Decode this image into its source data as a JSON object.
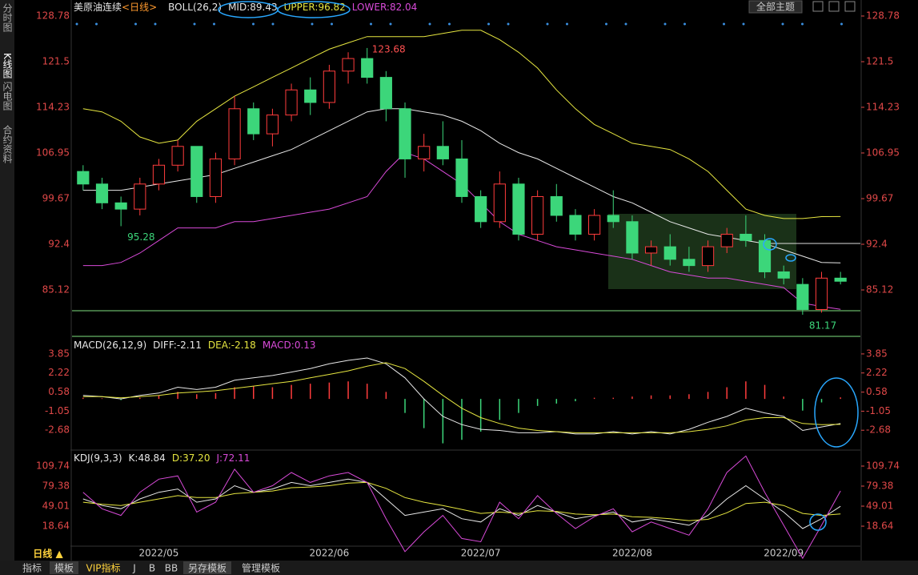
{
  "window": {
    "sidebar": [
      "分时图",
      "K线图",
      "闪电图",
      "合约资料"
    ],
    "theme_button": "全部主题",
    "period_switch": "日线 ▲",
    "tabs": [
      "指标",
      "模板",
      "VIP指标",
      "J",
      "B",
      "BB",
      "另存模板",
      "管理模板"
    ]
  },
  "chart_data": [
    {
      "type": "candlestick",
      "title": "美原油连续",
      "period": "<日线>",
      "indicator": "BOLL(26,2)",
      "readouts": [
        "MID:89.43",
        "UPPER:96.82",
        "LOWER:82.04"
      ],
      "readout_colors": [
        "#e8e8e8",
        "#e6e640",
        "#d84ad8"
      ],
      "categories": [
        null,
        null,
        null,
        null,
        "2022/05",
        null,
        null,
        null,
        null,
        null,
        null,
        null,
        null,
        "2022/06",
        null,
        null,
        null,
        null,
        null,
        null,
        null,
        "2022/07",
        null,
        null,
        null,
        null,
        null,
        null,
        null,
        "2022/08",
        null,
        null,
        null,
        null,
        null,
        null,
        null,
        "2022/09",
        null,
        null,
        null
      ],
      "open": [
        104,
        102,
        99,
        98,
        102,
        105,
        108,
        100,
        106,
        114,
        110,
        113,
        117,
        115,
        120,
        122,
        119,
        114,
        106,
        108,
        106,
        100,
        96,
        102,
        94,
        100,
        97,
        94,
        97,
        96,
        91,
        92,
        90,
        89,
        92,
        94,
        93,
        88,
        86,
        82,
        87
      ],
      "high": [
        105,
        103,
        100,
        103,
        106,
        109,
        108,
        107,
        116,
        115,
        114,
        118,
        119,
        121,
        123,
        123.68,
        120,
        115,
        110,
        112,
        109,
        101,
        104,
        103,
        101,
        102,
        98,
        98,
        101,
        97,
        93,
        94,
        92,
        93,
        95,
        97,
        94,
        89,
        87,
        88,
        88
      ],
      "low": [
        101,
        98,
        95.28,
        97,
        101,
        104,
        99,
        99,
        105,
        109,
        108,
        112,
        113,
        114,
        118,
        118,
        112,
        103,
        104,
        105,
        99,
        95,
        95,
        93,
        93,
        96,
        93,
        93,
        95,
        90,
        89,
        89,
        88,
        88,
        91,
        92,
        87,
        86,
        81.17,
        81.5,
        86
      ],
      "close": [
        102,
        99,
        98,
        102,
        105,
        108,
        100,
        106,
        114,
        110,
        113,
        117,
        115,
        120,
        122,
        119,
        114,
        106,
        108,
        106,
        100,
        96,
        102,
        94,
        100,
        97,
        94,
        97,
        96,
        91,
        92,
        90,
        89,
        92,
        94,
        93,
        88,
        87,
        82,
        87,
        86.5
      ],
      "up_color": "#ff3c3c",
      "down_color": "#3cd67a",
      "series": [
        {
          "color": "#e8e8e8",
          "values": [
            101,
            101,
            101,
            101.5,
            102,
            102.5,
            103,
            103.5,
            104.5,
            105.5,
            106.5,
            107.5,
            109,
            110.5,
            112,
            113.5,
            114,
            114,
            113.5,
            113,
            112,
            110.5,
            108.5,
            107,
            106,
            104.5,
            103,
            101.5,
            100,
            99,
            97.5,
            96,
            95,
            94,
            93.5,
            93,
            92.5,
            91.5,
            90.5,
            89.5,
            89.43
          ]
        },
        {
          "color": "#e6e640",
          "values": [
            114,
            113.5,
            112,
            109.5,
            108.5,
            109,
            112,
            114,
            116,
            117.5,
            119,
            120.5,
            122,
            123.5,
            124.5,
            125.5,
            125.5,
            125.5,
            125.5,
            126,
            126.5,
            126.5,
            125,
            123,
            120.5,
            117,
            114,
            111.5,
            110,
            108.5,
            108,
            107.5,
            106,
            104,
            101,
            98,
            97,
            96.5,
            96.5,
            96.8,
            96.82
          ]
        },
        {
          "color": "#d84ad8",
          "values": [
            89,
            89,
            89.5,
            91,
            93,
            95,
            95,
            95,
            96,
            96,
            96.5,
            97,
            97.5,
            98,
            99,
            100,
            104,
            107,
            106,
            104,
            102,
            99,
            96,
            94,
            93,
            92,
            91.5,
            91,
            90.5,
            90,
            89,
            88,
            87.5,
            87,
            87,
            86.5,
            86,
            85.5,
            83,
            82.5,
            82.04
          ]
        }
      ],
      "annotations": [
        "123.68",
        "95.28",
        "81.17"
      ],
      "ylim": [
        77.72,
        130.31
      ],
      "yticks": [
        85.12,
        92.4,
        99.67,
        106.95,
        114.23,
        121.5,
        128.78
      ]
    },
    {
      "type": "macd",
      "indicator": "MACD(26,12,9)",
      "readouts": [
        "DIFF:-2.11",
        "DEA:-2.18",
        "MACD:0.13"
      ],
      "readout_colors": [
        "#e8e8e8",
        "#e6e640",
        "#d84ad8"
      ],
      "series": [
        {
          "color": "#e8e8e8",
          "values": [
            0.3,
            0.2,
            0,
            0.3,
            0.5,
            1.0,
            0.8,
            1.0,
            1.6,
            1.8,
            2.0,
            2.3,
            2.6,
            3.0,
            3.3,
            3.5,
            3.0,
            1.8,
            0,
            -1.5,
            -2.2,
            -2.6,
            -2.7,
            -2.9,
            -2.9,
            -2.8,
            -3.0,
            -3.0,
            -2.8,
            -3.0,
            -2.8,
            -3.0,
            -2.6,
            -2.0,
            -1.5,
            -0.8,
            -1.2,
            -1.5,
            -2.7,
            -2.4,
            -2.11
          ]
        },
        {
          "color": "#e6e640",
          "values": [
            0.2,
            0.2,
            0.1,
            0.2,
            0.3,
            0.5,
            0.6,
            0.7,
            0.9,
            1.1,
            1.3,
            1.5,
            1.8,
            2.1,
            2.4,
            2.8,
            3.1,
            2.6,
            1.5,
            0.3,
            -0.8,
            -1.6,
            -2.1,
            -2.5,
            -2.7,
            -2.8,
            -2.9,
            -2.9,
            -2.9,
            -2.9,
            -2.9,
            -2.9,
            -2.8,
            -2.6,
            -2.3,
            -1.8,
            -1.6,
            -1.6,
            -2.1,
            -2.2,
            -2.18
          ]
        }
      ],
      "histogram": {
        "up_color": "#ff3c3c",
        "down_color": "#3cd67a",
        "values": [
          0.1,
          0.05,
          -0.1,
          0.1,
          0.3,
          0.6,
          0.4,
          0.5,
          1.0,
          1.1,
          1.0,
          1.2,
          1.3,
          1.4,
          1.5,
          1.3,
          0.6,
          -1.2,
          -2.5,
          -3.8,
          -3.5,
          -2.8,
          -1.8,
          -1.2,
          -0.6,
          -0.4,
          -0.2,
          0.1,
          0.1,
          0.2,
          0.3,
          0.3,
          0.4,
          0.6,
          1.0,
          1.5,
          1.2,
          0.2,
          -1.0,
          -0.3,
          0.13
        ]
      },
      "ylim": [
        -4.24,
        5.01
      ],
      "yticks": [
        -2.68,
        -1.05,
        0.58,
        2.22,
        3.85
      ]
    },
    {
      "type": "line",
      "indicator": "KDJ(9,3,3)",
      "readouts": [
        "K:48.84",
        "D:37.20",
        "J:72.11"
      ],
      "readout_colors": [
        "#e8e8e8",
        "#e6e640",
        "#d84ad8"
      ],
      "series": [
        {
          "color": "#e8e8e8",
          "values": [
            60,
            50,
            45,
            60,
            70,
            75,
            55,
            60,
            80,
            70,
            75,
            85,
            80,
            85,
            90,
            85,
            60,
            35,
            40,
            45,
            30,
            25,
            45,
            35,
            50,
            40,
            30,
            35,
            40,
            25,
            30,
            25,
            20,
            35,
            60,
            80,
            60,
            40,
            15,
            30,
            48.84
          ]
        },
        {
          "color": "#e6e640",
          "values": [
            55,
            52,
            50,
            55,
            60,
            65,
            62,
            62,
            68,
            70,
            72,
            77,
            78,
            80,
            84,
            85,
            76,
            62,
            55,
            50,
            44,
            38,
            40,
            38,
            42,
            41,
            37,
            36,
            37,
            33,
            32,
            30,
            27,
            29,
            39,
            53,
            55,
            50,
            38,
            35,
            37.2
          ]
        },
        {
          "color": "#d84ad8",
          "values": [
            70,
            45,
            35,
            70,
            90,
            95,
            40,
            55,
            105,
            70,
            80,
            100,
            85,
            95,
            100,
            85,
            30,
            -20,
            10,
            35,
            0,
            -5,
            55,
            30,
            65,
            38,
            15,
            33,
            45,
            10,
            25,
            15,
            5,
            45,
            100,
            125,
            70,
            20,
            -30,
            20,
            72.11
          ]
        }
      ],
      "ylim": [
        -21.4,
        130.4
      ],
      "yticks": [
        18.64,
        49.01,
        79.38,
        109.74
      ]
    }
  ]
}
